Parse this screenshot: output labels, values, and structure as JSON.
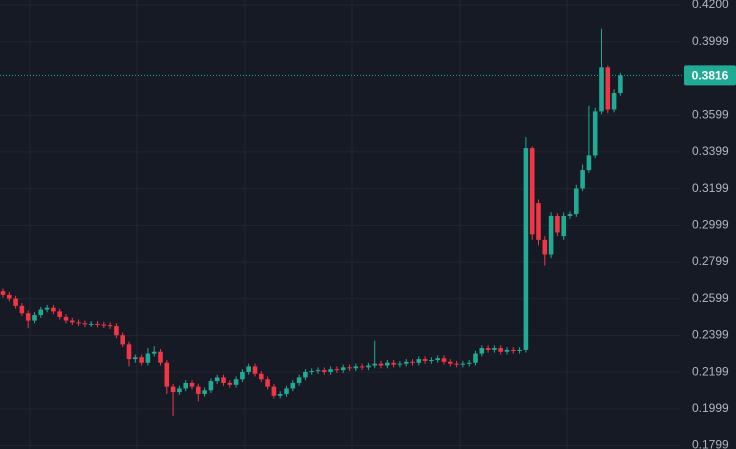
{
  "chart_data": {
    "type": "candlestick",
    "ylim": [
      0.178,
      0.4227
    ],
    "yticks": [
      {
        "value": 0.42,
        "label": "0.4200"
      },
      0.3999,
      0.3599,
      0.3399,
      0.3199,
      0.2999,
      0.2799,
      0.2599,
      0.2399,
      0.2199,
      0.1999,
      0.1799
    ],
    "grid": true,
    "up_color": "#22ab94",
    "down_color": "#f23645",
    "last_price": 0.3816,
    "open": [
      0.264,
      0.262,
      0.26,
      0.256,
      0.252,
      0.248,
      0.251,
      0.254,
      0.255,
      0.253,
      0.25,
      0.248,
      0.247,
      0.2465,
      0.246,
      0.2462,
      0.2458,
      0.2455,
      0.245,
      0.24,
      0.235,
      0.227,
      0.228,
      0.225,
      0.23,
      0.231,
      0.225,
      0.212,
      0.209,
      0.211,
      0.214,
      0.212,
      0.208,
      0.21,
      0.215,
      0.217,
      0.214,
      0.213,
      0.216,
      0.22,
      0.223,
      0.219,
      0.216,
      0.212,
      0.207,
      0.208,
      0.211,
      0.214,
      0.217,
      0.22,
      0.2205,
      0.221,
      0.22,
      0.2215,
      0.221,
      0.2225,
      0.222,
      0.223,
      0.2225,
      0.2235,
      0.2245,
      0.2235,
      0.225,
      0.224,
      0.2245,
      0.2255,
      0.225,
      0.227,
      0.226,
      0.2265,
      0.2275,
      0.2255,
      0.2245,
      0.224,
      0.2245,
      0.225,
      0.23,
      0.233,
      0.232,
      0.233,
      0.231,
      0.232,
      0.2315,
      0.232,
      0.342,
      0.312,
      0.292,
      0.284,
      0.305,
      0.294,
      0.305,
      0.306,
      0.32,
      0.33,
      0.338,
      0.362,
      0.386,
      0.363,
      0.372
    ],
    "high": [
      0.2655,
      0.2635,
      0.2615,
      0.2575,
      0.2535,
      0.2525,
      0.2555,
      0.2565,
      0.2565,
      0.2545,
      0.2515,
      0.2495,
      0.2485,
      0.248,
      0.2477,
      0.2477,
      0.2473,
      0.247,
      0.2465,
      0.2415,
      0.2365,
      0.2295,
      0.2295,
      0.233,
      0.234,
      0.2325,
      0.2265,
      0.2135,
      0.2125,
      0.2155,
      0.2155,
      0.2135,
      0.2115,
      0.2165,
      0.2185,
      0.2185,
      0.2155,
      0.2175,
      0.2215,
      0.2245,
      0.2245,
      0.2205,
      0.2175,
      0.2135,
      0.2095,
      0.2125,
      0.2155,
      0.2185,
      0.2215,
      0.222,
      0.2225,
      0.2225,
      0.223,
      0.223,
      0.224,
      0.224,
      0.2245,
      0.2245,
      0.225,
      0.237,
      0.226,
      0.2265,
      0.2265,
      0.226,
      0.227,
      0.227,
      0.2285,
      0.2285,
      0.228,
      0.229,
      0.229,
      0.227,
      0.226,
      0.226,
      0.2265,
      0.2315,
      0.2345,
      0.2345,
      0.2345,
      0.2345,
      0.2335,
      0.2335,
      0.2335,
      0.348,
      0.343,
      0.314,
      0.294,
      0.307,
      0.3065,
      0.307,
      0.3075,
      0.322,
      0.333,
      0.365,
      0.364,
      0.407,
      0.387,
      0.374,
      0.383
    ],
    "low": [
      0.2605,
      0.2585,
      0.2545,
      0.2505,
      0.244,
      0.2465,
      0.2495,
      0.2525,
      0.2515,
      0.2485,
      0.2465,
      0.2455,
      0.245,
      0.2445,
      0.2445,
      0.2443,
      0.244,
      0.2435,
      0.2385,
      0.2335,
      0.223,
      0.225,
      0.2235,
      0.2235,
      0.2285,
      0.2235,
      0.208,
      0.196,
      0.2075,
      0.2095,
      0.2105,
      0.204,
      0.2065,
      0.2085,
      0.2135,
      0.2125,
      0.2115,
      0.2115,
      0.2145,
      0.2185,
      0.2175,
      0.2145,
      0.2105,
      0.2055,
      0.2055,
      0.2065,
      0.2095,
      0.2125,
      0.2155,
      0.2185,
      0.219,
      0.2185,
      0.2185,
      0.2195,
      0.2195,
      0.2205,
      0.2205,
      0.221,
      0.221,
      0.222,
      0.222,
      0.222,
      0.2225,
      0.2225,
      0.223,
      0.2235,
      0.2235,
      0.2245,
      0.2245,
      0.225,
      0.224,
      0.223,
      0.2225,
      0.2225,
      0.223,
      0.2235,
      0.2285,
      0.2305,
      0.2305,
      0.2295,
      0.2295,
      0.23,
      0.23,
      0.2305,
      0.292,
      0.289,
      0.278,
      0.282,
      0.294,
      0.292,
      0.3035,
      0.3045,
      0.3185,
      0.3285,
      0.3365,
      0.3605,
      0.361,
      0.3615,
      0.3705
    ],
    "close": [
      0.262,
      0.26,
      0.256,
      0.252,
      0.248,
      0.251,
      0.254,
      0.255,
      0.253,
      0.25,
      0.248,
      0.247,
      0.2465,
      0.246,
      0.2462,
      0.2458,
      0.2455,
      0.245,
      0.24,
      0.235,
      0.227,
      0.228,
      0.225,
      0.23,
      0.231,
      0.225,
      0.212,
      0.209,
      0.211,
      0.214,
      0.212,
      0.208,
      0.21,
      0.215,
      0.217,
      0.214,
      0.213,
      0.216,
      0.22,
      0.223,
      0.219,
      0.216,
      0.212,
      0.207,
      0.208,
      0.211,
      0.214,
      0.217,
      0.22,
      0.2205,
      0.221,
      0.22,
      0.2215,
      0.221,
      0.2225,
      0.222,
      0.223,
      0.2225,
      0.2235,
      0.2245,
      0.2235,
      0.225,
      0.224,
      0.2245,
      0.2255,
      0.225,
      0.227,
      0.226,
      0.2265,
      0.2275,
      0.2255,
      0.2245,
      0.224,
      0.2245,
      0.225,
      0.23,
      0.233,
      0.232,
      0.233,
      0.231,
      0.232,
      0.2315,
      0.232,
      0.342,
      0.295,
      0.292,
      0.284,
      0.305,
      0.296,
      0.305,
      0.306,
      0.32,
      0.33,
      0.338,
      0.362,
      0.386,
      0.363,
      0.372,
      0.3816
    ]
  }
}
